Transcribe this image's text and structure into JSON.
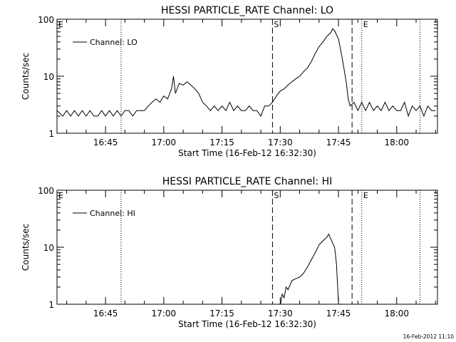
{
  "footer": {
    "timestamp": "16-Feb-2012 11:10"
  },
  "chart_data": [
    {
      "type": "line",
      "title": "HESSI PARTICLE_RATE Channel: LO",
      "xlabel": "Start Time (16-Feb-12 16:32:30)",
      "ylabel": "Counts/sec",
      "x_ticks": [
        "16:45",
        "17:00",
        "17:15",
        "17:30",
        "17:45",
        "18:00"
      ],
      "y_ticks": [
        "1",
        "10",
        "100"
      ],
      "y_scale": "log",
      "ylim": [
        1,
        100
      ],
      "xlim": [
        "16:32:30",
        "18:10:30"
      ],
      "legend": {
        "placement": "top-left",
        "entries": [
          "Channel: LO"
        ]
      },
      "markers": [
        {
          "label": "E",
          "time": "16:32:30",
          "style": "none"
        },
        {
          "label": "",
          "time": "16:49:00",
          "style": "dotted"
        },
        {
          "label": "S",
          "time": "17:28:00",
          "style": "dashed"
        },
        {
          "label": "",
          "time": "17:48:30",
          "style": "dashed"
        },
        {
          "label": "E",
          "time": "17:51:00",
          "style": "dotted"
        },
        {
          "label": "",
          "time": "18:06:00",
          "style": "dotted"
        }
      ],
      "series": [
        {
          "name": "Channel: LO",
          "points": [
            [
              "16:32:30",
              2.5
            ],
            [
              "16:34:00",
              2.0
            ],
            [
              "16:35:00",
              2.5
            ],
            [
              "16:36:00",
              2.0
            ],
            [
              "16:37:00",
              2.5
            ],
            [
              "16:38:00",
              2.0
            ],
            [
              "16:39:00",
              2.5
            ],
            [
              "16:40:00",
              2.0
            ],
            [
              "16:41:00",
              2.5
            ],
            [
              "16:42:00",
              2.0
            ],
            [
              "16:43:00",
              2.0
            ],
            [
              "16:44:00",
              2.5
            ],
            [
              "16:45:00",
              2.0
            ],
            [
              "16:46:00",
              2.5
            ],
            [
              "16:47:00",
              2.0
            ],
            [
              "16:48:00",
              2.5
            ],
            [
              "16:49:00",
              2.0
            ],
            [
              "16:50:00",
              2.5
            ],
            [
              "16:51:00",
              2.5
            ],
            [
              "16:52:00",
              2.0
            ],
            [
              "16:53:00",
              2.5
            ],
            [
              "16:54:00",
              2.5
            ],
            [
              "16:55:00",
              2.5
            ],
            [
              "16:56:00",
              3.0
            ],
            [
              "16:57:00",
              3.5
            ],
            [
              "16:58:00",
              4.0
            ],
            [
              "16:59:00",
              3.5
            ],
            [
              "17:00:00",
              4.5
            ],
            [
              "17:01:00",
              4.0
            ],
            [
              "17:02:00",
              6.0
            ],
            [
              "17:02:30",
              10.0
            ],
            [
              "17:03:00",
              5.0
            ],
            [
              "17:04:00",
              7.5
            ],
            [
              "17:05:00",
              7.0
            ],
            [
              "17:06:00",
              8.0
            ],
            [
              "17:07:00",
              7.0
            ],
            [
              "17:08:00",
              6.0
            ],
            [
              "17:09:00",
              5.0
            ],
            [
              "17:10:00",
              3.5
            ],
            [
              "17:11:00",
              3.0
            ],
            [
              "17:12:00",
              2.5
            ],
            [
              "17:13:00",
              3.0
            ],
            [
              "17:14:00",
              2.5
            ],
            [
              "17:15:00",
              3.0
            ],
            [
              "17:16:00",
              2.5
            ],
            [
              "17:17:00",
              3.5
            ],
            [
              "17:18:00",
              2.5
            ],
            [
              "17:19:00",
              3.0
            ],
            [
              "17:20:00",
              2.5
            ],
            [
              "17:21:00",
              2.5
            ],
            [
              "17:22:00",
              3.0
            ],
            [
              "17:23:00",
              2.5
            ],
            [
              "17:24:00",
              2.5
            ],
            [
              "17:25:00",
              2.0
            ],
            [
              "17:26:00",
              3.0
            ],
            [
              "17:27:00",
              3.0
            ],
            [
              "17:28:00",
              3.5
            ],
            [
              "17:29:00",
              4.5
            ],
            [
              "17:30:00",
              5.5
            ],
            [
              "17:31:00",
              6.0
            ],
            [
              "17:32:00",
              7.0
            ],
            [
              "17:33:00",
              8.0
            ],
            [
              "17:34:00",
              9.0
            ],
            [
              "17:35:00",
              10.0
            ],
            [
              "17:36:00",
              12.0
            ],
            [
              "17:37:00",
              14.0
            ],
            [
              "17:38:00",
              18.0
            ],
            [
              "17:39:00",
              25.0
            ],
            [
              "17:40:00",
              33.0
            ],
            [
              "17:41:00",
              40.0
            ],
            [
              "17:42:00",
              50.0
            ],
            [
              "17:43:00",
              58.0
            ],
            [
              "17:43:30",
              68.0
            ],
            [
              "17:44:00",
              63.0
            ],
            [
              "17:45:00",
              45.0
            ],
            [
              "17:46:00",
              20.0
            ],
            [
              "17:47:00",
              8.0
            ],
            [
              "17:47:30",
              4.0
            ],
            [
              "17:48:00",
              3.0
            ],
            [
              "17:49:00",
              3.5
            ],
            [
              "17:50:00",
              2.5
            ],
            [
              "17:51:00",
              3.5
            ],
            [
              "17:52:00",
              2.5
            ],
            [
              "17:53:00",
              3.5
            ],
            [
              "17:54:00",
              2.5
            ],
            [
              "17:55:00",
              3.0
            ],
            [
              "17:56:00",
              2.5
            ],
            [
              "17:57:00",
              3.5
            ],
            [
              "17:58:00",
              2.5
            ],
            [
              "17:59:00",
              3.0
            ],
            [
              "18:00:00",
              2.5
            ],
            [
              "18:01:00",
              2.5
            ],
            [
              "18:02:00",
              3.5
            ],
            [
              "18:03:00",
              2.0
            ],
            [
              "18:04:00",
              3.0
            ],
            [
              "18:05:00",
              2.5
            ],
            [
              "18:06:00",
              3.0
            ],
            [
              "18:07:00",
              2.0
            ],
            [
              "18:08:00",
              3.0
            ],
            [
              "18:09:00",
              2.5
            ],
            [
              "18:10:00",
              2.5
            ]
          ]
        }
      ]
    },
    {
      "type": "line",
      "title": "HESSI PARTICLE_RATE Channel: HI",
      "xlabel": "Start Time (16-Feb-12 16:32:30)",
      "ylabel": "Counts/sec",
      "x_ticks": [
        "16:45",
        "17:00",
        "17:15",
        "17:30",
        "17:45",
        "18:00"
      ],
      "y_ticks": [
        "1",
        "10",
        "100"
      ],
      "y_scale": "log",
      "ylim": [
        1,
        100
      ],
      "xlim": [
        "16:32:30",
        "18:10:30"
      ],
      "legend": {
        "placement": "top-left",
        "entries": [
          "Channel: HI"
        ]
      },
      "markers": [
        {
          "label": "E",
          "time": "16:32:30",
          "style": "none"
        },
        {
          "label": "",
          "time": "16:49:00",
          "style": "dotted"
        },
        {
          "label": "S",
          "time": "17:28:00",
          "style": "dashed"
        },
        {
          "label": "",
          "time": "17:48:30",
          "style": "dashed"
        },
        {
          "label": "E",
          "time": "17:51:00",
          "style": "dotted"
        },
        {
          "label": "",
          "time": "18:06:00",
          "style": "dotted"
        }
      ],
      "series": [
        {
          "name": "Channel: HI",
          "points": [
            [
              "17:30:00",
              0.9
            ],
            [
              "17:30:30",
              1.5
            ],
            [
              "17:31:00",
              1.3
            ],
            [
              "17:31:30",
              2.0
            ],
            [
              "17:32:00",
              1.8
            ],
            [
              "17:33:00",
              2.6
            ],
            [
              "17:34:00",
              2.8
            ],
            [
              "17:35:00",
              3.0
            ],
            [
              "17:36:00",
              3.5
            ],
            [
              "17:37:00",
              4.5
            ],
            [
              "17:38:00",
              6.0
            ],
            [
              "17:39:00",
              8.0
            ],
            [
              "17:40:00",
              11.0
            ],
            [
              "17:41:00",
              13.0
            ],
            [
              "17:42:00",
              15.0
            ],
            [
              "17:42:30",
              17.0
            ],
            [
              "17:43:00",
              14.0
            ],
            [
              "17:44:00",
              10.0
            ],
            [
              "17:44:30",
              5.0
            ],
            [
              "17:45:00",
              1.0
            ],
            [
              "17:45:30",
              0.9
            ]
          ]
        }
      ]
    }
  ]
}
